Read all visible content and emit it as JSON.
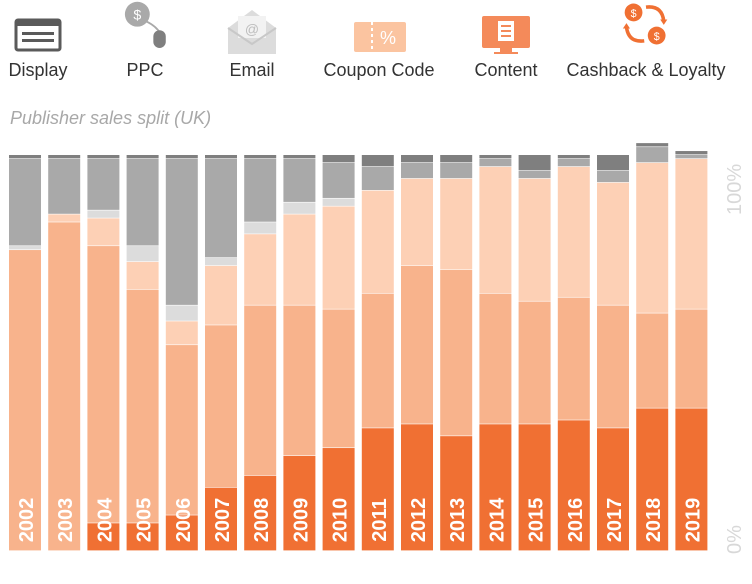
{
  "legend": [
    {
      "label": "Display",
      "icon": "display-icon"
    },
    {
      "label": "PPC",
      "icon": "ppc-mouse-icon"
    },
    {
      "label": "Email",
      "icon": "email-icon"
    },
    {
      "label": "Coupon Code",
      "icon": "coupon-icon"
    },
    {
      "label": "Content",
      "icon": "content-icon"
    },
    {
      "label": "Cashback & Loyalty",
      "icon": "cashback-icon"
    }
  ],
  "chart_data": {
    "type": "bar",
    "stacked": true,
    "title": "",
    "subtitle": "Publisher sales split (UK)",
    "xlabel": "",
    "ylabel": "",
    "ylim": [
      0,
      100
    ],
    "ytick_labels": [
      "0%",
      "100%"
    ],
    "categories": [
      "2002",
      "2003",
      "2004",
      "2005",
      "2006",
      "2007",
      "2008",
      "2009",
      "2010",
      "2011",
      "2012",
      "2013",
      "2014",
      "2015",
      "2016",
      "2017",
      "2018",
      "2019"
    ],
    "series": [
      {
        "name": "Cashback & Loyalty",
        "color": "#f07033",
        "values": [
          0,
          0,
          7,
          7,
          9,
          16,
          19,
          24,
          26,
          31,
          32,
          29,
          32,
          32,
          33,
          31,
          36,
          36
        ]
      },
      {
        "name": "Content",
        "color": "#f8b38c",
        "values": [
          76,
          83,
          70,
          59,
          43,
          41,
          43,
          38,
          35,
          34,
          40,
          42,
          33,
          31,
          31,
          31,
          24,
          25
        ]
      },
      {
        "name": "Coupon Code",
        "color": "#fdd0b5",
        "values": [
          0,
          2,
          7,
          7,
          6,
          15,
          18,
          23,
          26,
          26,
          22,
          23,
          32,
          31,
          33,
          31,
          38,
          38
        ]
      },
      {
        "name": "Email",
        "color": "#dcdcdc",
        "values": [
          1,
          0,
          2,
          4,
          4,
          2,
          3,
          3,
          2,
          0,
          0,
          0,
          0,
          0,
          0,
          0,
          0,
          0
        ]
      },
      {
        "name": "PPC",
        "color": "#a9a9a9",
        "values": [
          22,
          14,
          13,
          22,
          37,
          25,
          16,
          11,
          9,
          6,
          4,
          4,
          2,
          2,
          2,
          3,
          4,
          1
        ]
      },
      {
        "name": "Display",
        "color": "#7f7f7f",
        "values": [
          1,
          1,
          1,
          1,
          1,
          1,
          1,
          1,
          2,
          3,
          2,
          2,
          1,
          4,
          1,
          4,
          1,
          1
        ]
      }
    ]
  }
}
